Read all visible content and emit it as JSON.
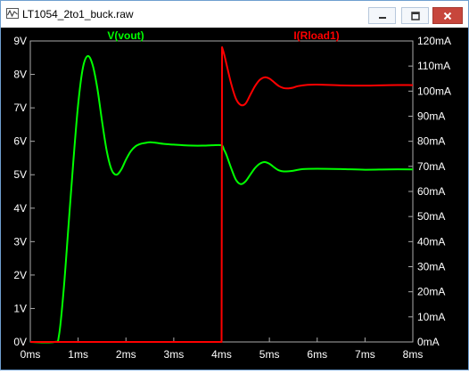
{
  "window": {
    "title": "LT1054_2to1_buck.raw",
    "icons": {
      "app": "waveform-icon",
      "minimize": "minimize-icon",
      "maximize": "maximize-icon",
      "close": "close-icon"
    }
  },
  "colors": {
    "vout": "#00ff00",
    "iload": "#ff0000",
    "axis": "#aaaaaa",
    "tick_text": "#ffffff",
    "background": "#000000"
  },
  "chart_data": {
    "type": "line",
    "series": [
      {
        "name": "V(vout)",
        "axis": "left",
        "x": [
          0,
          0.5,
          0.6,
          0.7,
          0.8,
          0.9,
          1.0,
          1.1,
          1.2,
          1.3,
          1.4,
          1.5,
          1.6,
          1.7,
          1.8,
          1.9,
          2.0,
          2.1,
          2.2,
          2.3,
          2.4,
          2.5,
          2.6,
          2.8,
          3.0,
          3.2,
          3.4,
          3.6,
          3.8,
          4.0,
          4.05,
          4.1,
          4.2,
          4.3,
          4.4,
          4.5,
          4.6,
          4.7,
          4.8,
          4.9,
          5.0,
          5.1,
          5.2,
          5.3,
          5.5,
          5.7,
          6.0,
          6.5,
          7.0,
          7.5,
          8.0
        ],
        "y": [
          0,
          0,
          0.2,
          1.6,
          3.5,
          5.4,
          7.1,
          8.2,
          8.55,
          8.3,
          7.6,
          6.6,
          5.7,
          5.15,
          5.0,
          5.15,
          5.45,
          5.7,
          5.85,
          5.92,
          5.95,
          5.97,
          5.96,
          5.92,
          5.9,
          5.88,
          5.87,
          5.87,
          5.88,
          5.88,
          5.75,
          5.6,
          5.2,
          4.85,
          4.72,
          4.8,
          5.0,
          5.2,
          5.33,
          5.38,
          5.33,
          5.22,
          5.13,
          5.1,
          5.12,
          5.17,
          5.18,
          5.17,
          5.15,
          5.16,
          5.16
        ]
      },
      {
        "name": "I(Rload1)",
        "axis": "right",
        "x": [
          0,
          3.99,
          4.0,
          4.01,
          4.05,
          4.1,
          4.2,
          4.3,
          4.4,
          4.5,
          4.6,
          4.7,
          4.8,
          4.9,
          5.0,
          5.1,
          5.2,
          5.3,
          5.4,
          5.5,
          5.6,
          5.8,
          6.0,
          6.5,
          7.0,
          7.5,
          8.0
        ],
        "y": [
          0,
          0,
          0,
          117.5,
          115,
          111,
          103,
          97,
          94.5,
          95,
          98.5,
          102,
          104.5,
          105.5,
          105,
          103.5,
          102,
          101.2,
          101.1,
          101.4,
          102,
          102.5,
          102.6,
          102.3,
          102.2,
          102.4,
          102.4
        ]
      }
    ],
    "x_ticks": [
      "0ms",
      "1ms",
      "2ms",
      "3ms",
      "4ms",
      "5ms",
      "6ms",
      "7ms",
      "8ms"
    ],
    "y_left_ticks": [
      "0V",
      "1V",
      "2V",
      "3V",
      "4V",
      "5V",
      "6V",
      "7V",
      "8V",
      "9V"
    ],
    "y_right_ticks": [
      "0mA",
      "10mA",
      "20mA",
      "30mA",
      "40mA",
      "50mA",
      "60mA",
      "70mA",
      "80mA",
      "90mA",
      "100mA",
      "110mA",
      "120mA"
    ],
    "xlim": [
      0,
      8
    ],
    "ylim_left": [
      0,
      9
    ],
    "ylim_right": [
      0,
      120
    ],
    "x_unit": "ms",
    "grid": false
  }
}
